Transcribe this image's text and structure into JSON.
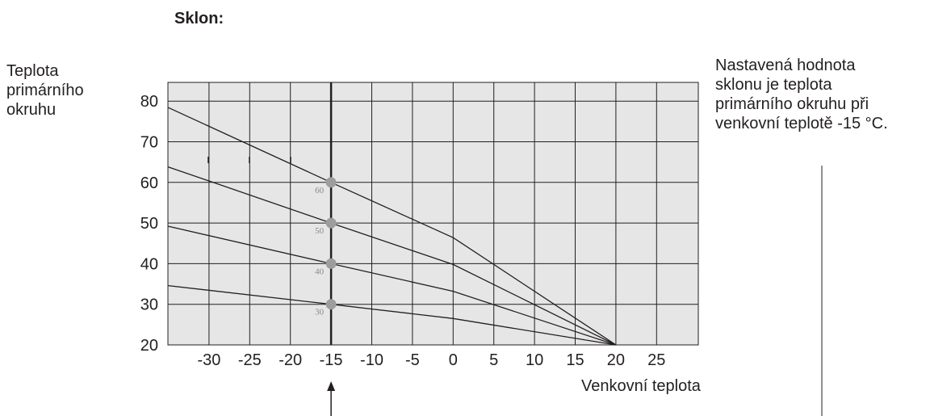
{
  "title": "Sklon:",
  "ylabel_lines": [
    "Teplota",
    "primárního",
    "okruhu"
  ],
  "xlabel": "Venkovní teplota",
  "note_lines": [
    "Nastavená hodnota",
    "sklonu je teplota",
    "primárního okruhu při",
    "venkovní teplotě -15 °C."
  ],
  "chart_data": {
    "type": "line",
    "title": "Sklon:",
    "xlabel": "Venkovní teplota",
    "ylabel": "Teplota primárního okruhu",
    "xlim": [
      -35,
      30
    ],
    "ylim": [
      20,
      86
    ],
    "x_ticks": [
      -30,
      -25,
      -20,
      -15,
      -10,
      -5,
      0,
      5,
      10,
      15,
      20,
      25
    ],
    "y_ticks": [
      20,
      30,
      40,
      50,
      60,
      70,
      80
    ],
    "grid": true,
    "highlight_x": -15,
    "series": [
      {
        "label": "30",
        "x": [
          -35,
          -15,
          0,
          20
        ],
        "y": [
          34.6,
          30,
          26.5,
          20
        ]
      },
      {
        "label": "40",
        "x": [
          -35,
          -15,
          0,
          20
        ],
        "y": [
          49.2,
          40,
          33.2,
          20
        ]
      },
      {
        "label": "50",
        "x": [
          -35,
          -15,
          0,
          20
        ],
        "y": [
          63.8,
          50,
          39.8,
          20
        ]
      },
      {
        "label": "60",
        "x": [
          -35,
          -15,
          0,
          20
        ],
        "y": [
          78.4,
          60,
          46.4,
          20
        ]
      }
    ],
    "colors": {
      "background": "#e6e6e6",
      "grid": "#231f20",
      "line": "#231f20",
      "marker": "#9d9d9d",
      "marker_label": "#8a8a8a"
    }
  }
}
